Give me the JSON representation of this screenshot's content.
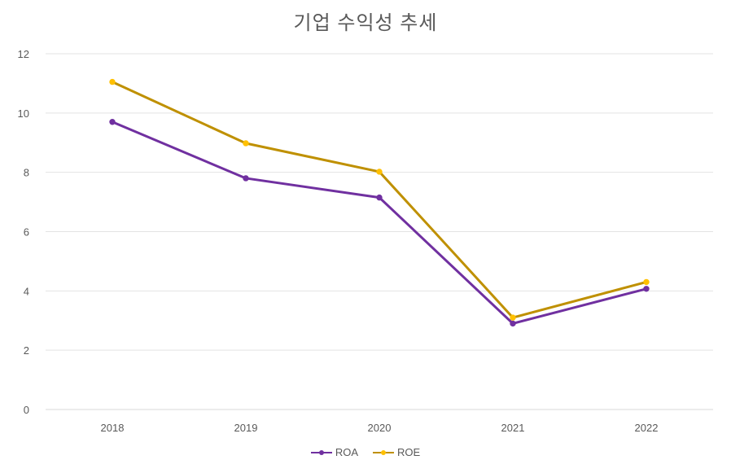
{
  "chart_data": {
    "type": "line",
    "title": "기업 수익성 추세",
    "categories": [
      "2018",
      "2019",
      "2020",
      "2021",
      "2022"
    ],
    "series": [
      {
        "name": "ROA",
        "values": [
          9.7,
          7.8,
          7.15,
          2.9,
          4.07
        ],
        "line_color": "#7030A0",
        "marker_color": "#7030A0"
      },
      {
        "name": "ROE",
        "values": [
          11.05,
          8.98,
          8.02,
          3.1,
          4.3
        ],
        "line_color": "#BF9000",
        "marker_color": "#FFC000"
      }
    ],
    "ylim": [
      0,
      12
    ],
    "yticks": [
      "0",
      "2",
      "4",
      "6",
      "8",
      "10",
      "12"
    ],
    "grid": true,
    "legend": "bottom-center",
    "xlabel": "",
    "ylabel": ""
  }
}
